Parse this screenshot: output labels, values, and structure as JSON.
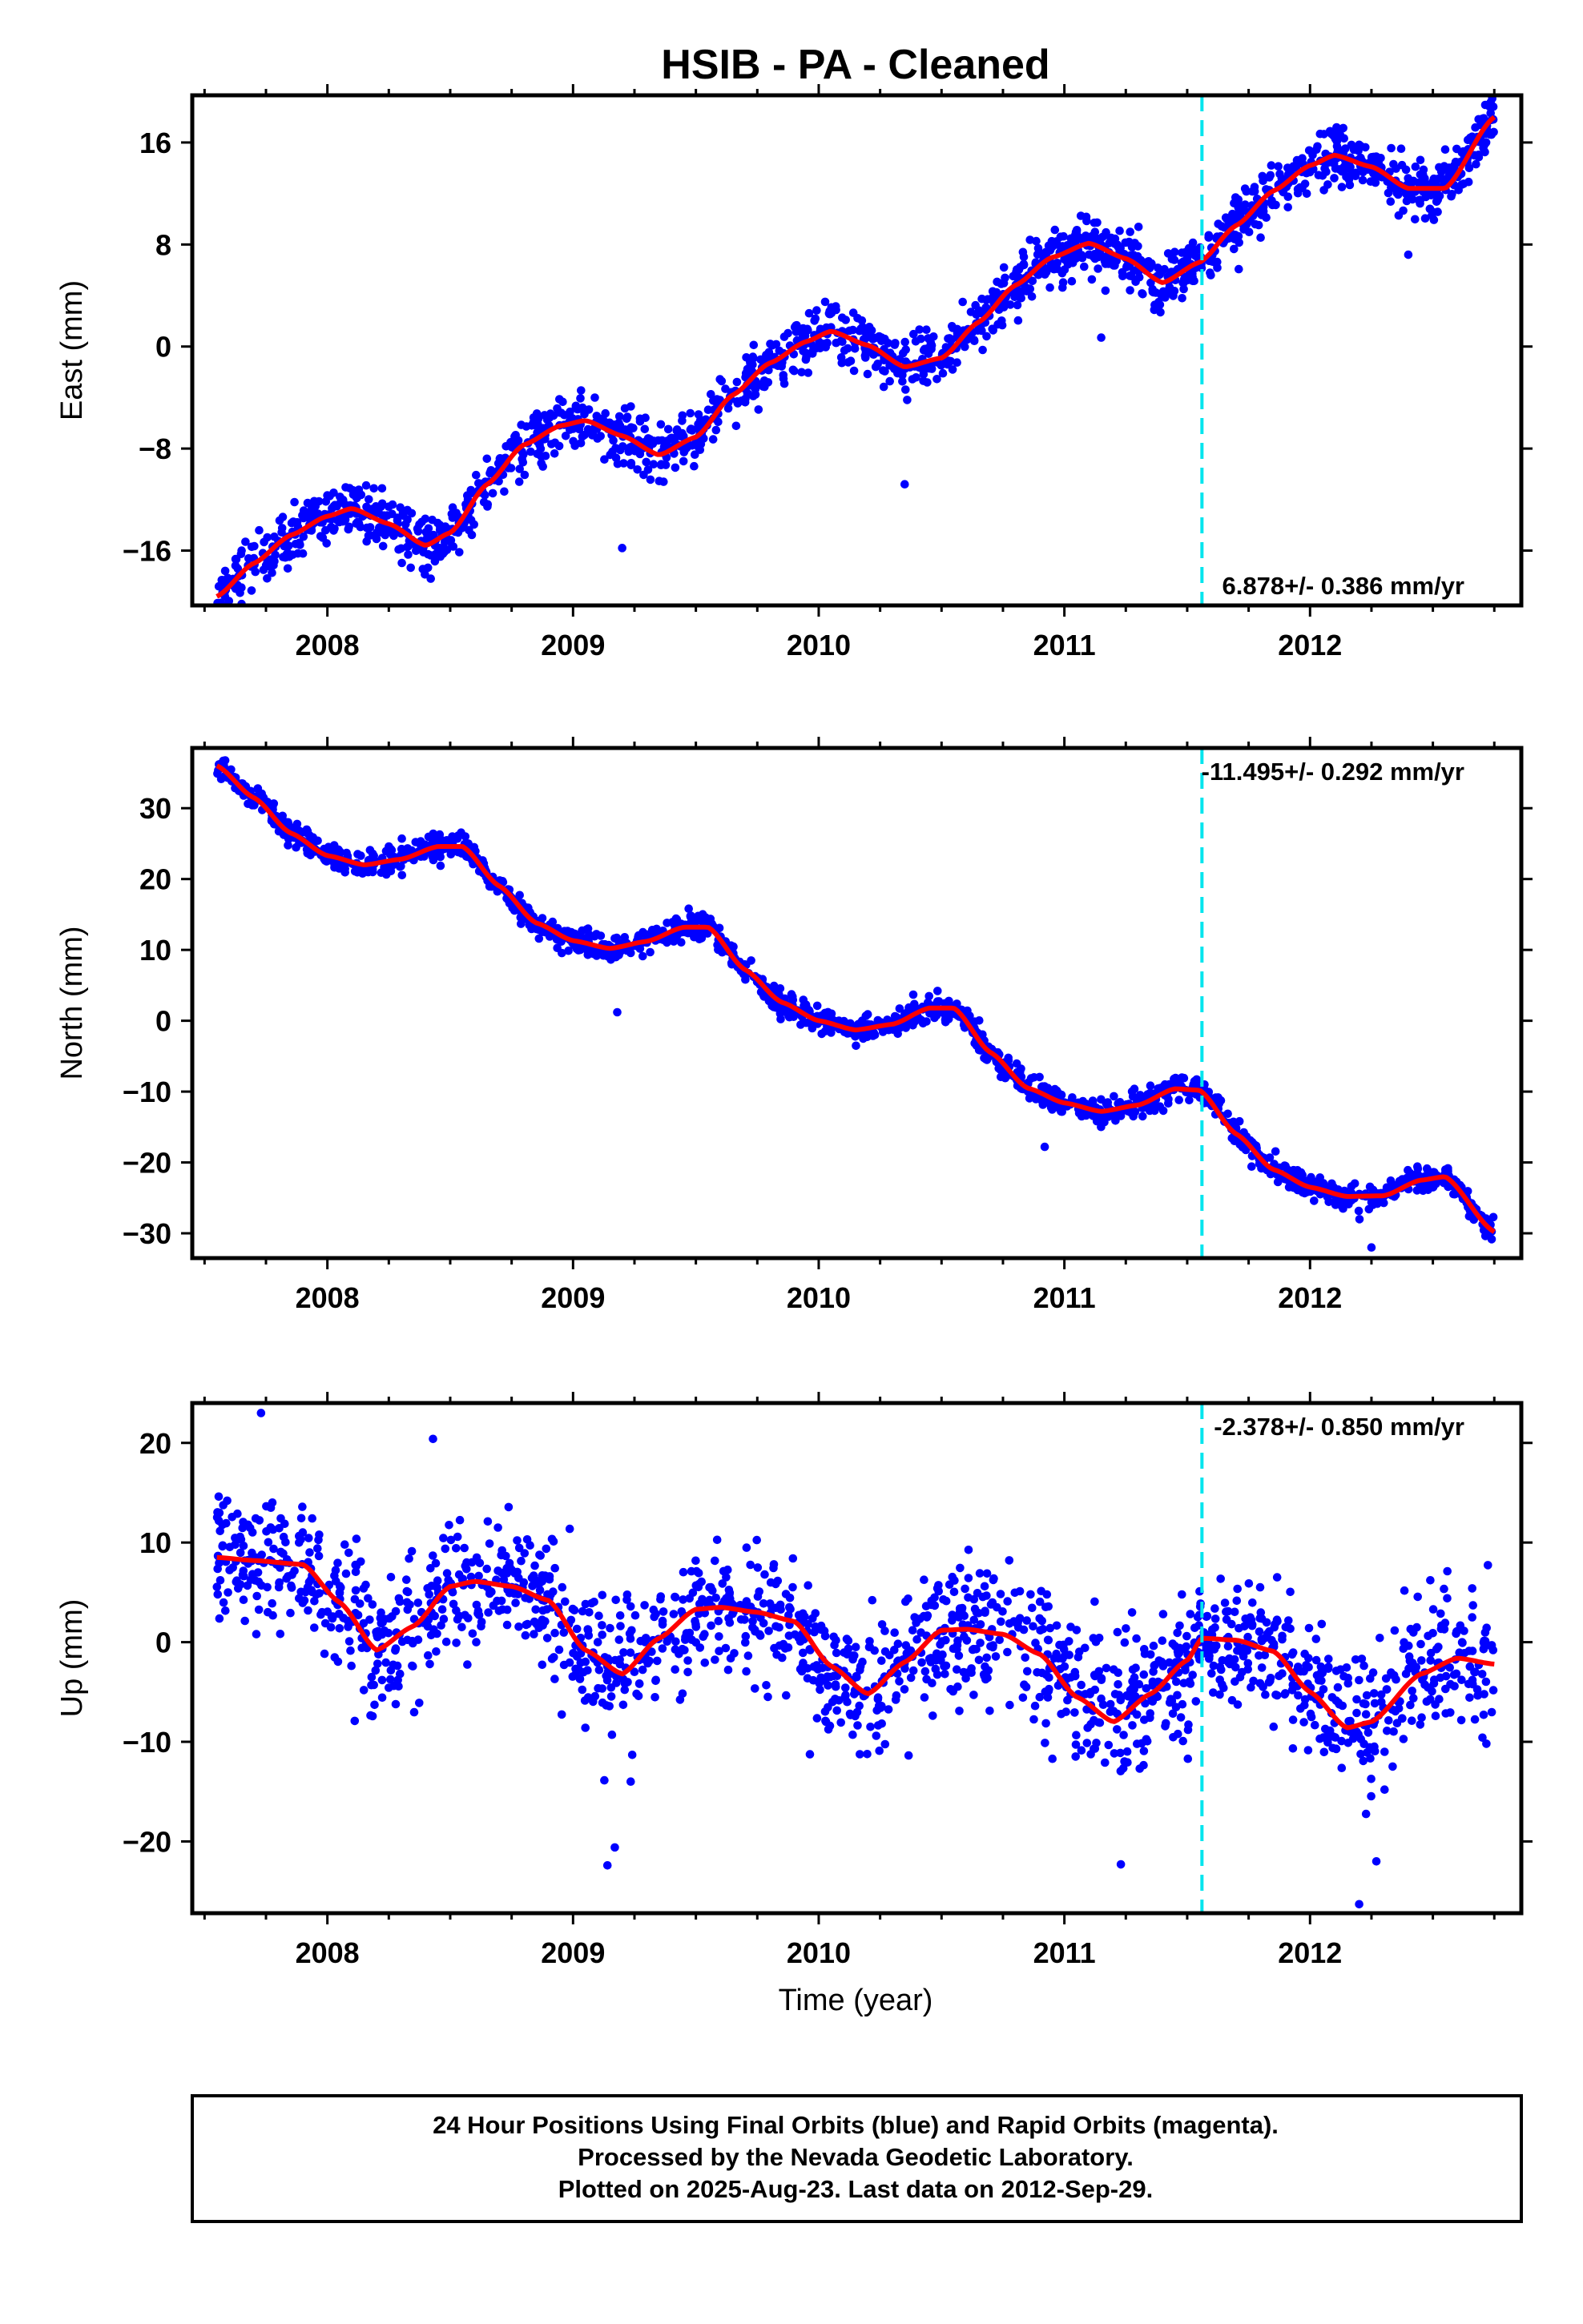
{
  "title": "HSIB  - PA - Cleaned",
  "xlabel": "Time (year)",
  "footer": {
    "line1": "24 Hour Positions Using Final Orbits (blue) and Rapid Orbits (magenta).",
    "line2": "Processed by the Nevada Geodetic Laboratory.",
    "line3": "Plotted on 2025-Aug-23. Last data on 2012-Sep-29."
  },
  "colors": {
    "points": "#0000ff",
    "model": "#ff0000",
    "event": "#00e5ee",
    "frame": "#000000"
  },
  "chart_data": [
    {
      "type": "scatter",
      "ylabel": "East (mm)",
      "rate": "6.878+/- 0.386 mm/yr",
      "rate_position": "bottom-right",
      "xlim": [
        2007.45,
        2012.86
      ],
      "ylim": [
        -20.3,
        19.7
      ],
      "xticks": [
        2008,
        2009,
        2010,
        2011,
        2012
      ],
      "yticks": [
        -16,
        -8,
        0,
        8,
        16
      ],
      "event_line_x": 2011.56,
      "grid": false,
      "model": {
        "x": [
          2007.55,
          2007.7,
          2007.85,
          2008.0,
          2008.1,
          2008.25,
          2008.4,
          2008.5,
          2008.65,
          2008.8,
          2008.95,
          2009.05,
          2009.2,
          2009.35,
          2009.5,
          2009.65,
          2009.8,
          2009.95,
          2010.05,
          2010.2,
          2010.35,
          2010.5,
          2010.65,
          2010.8,
          2010.95,
          2011.1,
          2011.25,
          2011.4,
          2011.55,
          2011.7,
          2011.85,
          2012.0,
          2012.1,
          2012.25,
          2012.4,
          2012.55,
          2012.75
        ],
        "y": [
          -19.6,
          -17.0,
          -14.8,
          -13.3,
          -12.7,
          -13.9,
          -15.6,
          -14.6,
          -10.8,
          -7.7,
          -6.2,
          -5.8,
          -7.0,
          -8.5,
          -7.1,
          -3.8,
          -1.3,
          0.4,
          1.2,
          0.1,
          -1.6,
          -0.9,
          1.9,
          4.8,
          7.0,
          8.1,
          6.9,
          5.0,
          6.6,
          9.5,
          12.2,
          14.2,
          15.0,
          14.1,
          12.4,
          12.4,
          18.0
        ]
      },
      "points": {
        "x_range": [
          2007.55,
          2012.75
        ],
        "scatter_sd_mm": 1.1,
        "count": 1700,
        "outliers": [
          {
            "x": 2009.2,
            "y": -15.8
          },
          {
            "x": 2010.35,
            "y": -10.8
          },
          {
            "x": 2012.4,
            "y": 7.2
          },
          {
            "x": 2011.15,
            "y": 0.7
          }
        ]
      }
    },
    {
      "type": "scatter",
      "ylabel": "North (mm)",
      "rate": "-11.495+/- 0.292 mm/yr",
      "rate_position": "top-right",
      "xlim": [
        2007.45,
        2012.86
      ],
      "ylim": [
        -33.5,
        38.5
      ],
      "xticks": [
        2008,
        2009,
        2010,
        2011,
        2012
      ],
      "yticks": [
        -30,
        -20,
        -10,
        0,
        10,
        20,
        30
      ],
      "event_line_x": 2011.56,
      "grid": false,
      "model": {
        "x": [
          2007.55,
          2007.7,
          2007.85,
          2008.0,
          2008.15,
          2008.3,
          2008.45,
          2008.55,
          2008.7,
          2008.85,
          2009.0,
          2009.15,
          2009.3,
          2009.45,
          2009.55,
          2009.7,
          2009.85,
          2010.0,
          2010.15,
          2010.3,
          2010.45,
          2010.55,
          2010.7,
          2010.85,
          2011.0,
          2011.15,
          2011.3,
          2011.45,
          2011.55,
          2011.7,
          2011.85,
          2012.0,
          2012.15,
          2012.3,
          2012.45,
          2012.55,
          2012.75
        ],
        "y": [
          36.0,
          31.5,
          26.5,
          23.3,
          22.0,
          22.8,
          24.6,
          24.6,
          19.0,
          13.8,
          11.3,
          10.2,
          11.2,
          13.2,
          13.2,
          7.2,
          2.6,
          0.0,
          -1.3,
          -0.5,
          1.8,
          1.8,
          -4.5,
          -9.5,
          -11.6,
          -12.8,
          -11.9,
          -9.6,
          -9.8,
          -16.0,
          -21.0,
          -23.5,
          -24.8,
          -24.7,
          -22.5,
          -22.0,
          -29.8
        ]
      },
      "points": {
        "x_range": [
          2007.55,
          2012.75
        ],
        "scatter_sd_mm": 0.9,
        "count": 1700,
        "outliers": [
          {
            "x": 2009.18,
            "y": 1.2
          },
          {
            "x": 2012.25,
            "y": -32.0
          },
          {
            "x": 2010.92,
            "y": -17.8
          }
        ]
      }
    },
    {
      "type": "scatter",
      "ylabel": "Up (mm)",
      "rate": "-2.378+/- 0.850 mm/yr",
      "rate_position": "top-right",
      "xlim": [
        2007.45,
        2012.86
      ],
      "ylim": [
        -27.2,
        24.0
      ],
      "xticks": [
        2008,
        2009,
        2010,
        2011,
        2012
      ],
      "yticks": [
        -20,
        -10,
        0,
        10,
        20
      ],
      "event_line_x": 2011.56,
      "grid": false,
      "model": {
        "x": [
          2007.55,
          2007.7,
          2007.9,
          2008.05,
          2008.2,
          2008.35,
          2008.5,
          2008.6,
          2008.75,
          2008.9,
          2009.05,
          2009.2,
          2009.35,
          2009.5,
          2009.6,
          2009.75,
          2009.9,
          2010.05,
          2010.2,
          2010.35,
          2010.5,
          2010.6,
          2010.75,
          2010.9,
          2011.05,
          2011.2,
          2011.35,
          2011.5,
          2011.56,
          2011.7,
          2011.85,
          2012.0,
          2012.15,
          2012.25,
          2012.45,
          2012.6,
          2012.75
        ],
        "y": [
          8.5,
          8.2,
          7.8,
          4.0,
          -0.8,
          1.6,
          5.6,
          6.1,
          5.6,
          4.2,
          -0.8,
          -3.2,
          0.4,
          3.3,
          3.5,
          3.0,
          2.1,
          -2.4,
          -5.2,
          -2.0,
          1.2,
          1.3,
          0.8,
          -1.2,
          -5.5,
          -8.0,
          -5.2,
          -1.8,
          0.4,
          0.2,
          -0.9,
          -5.0,
          -8.6,
          -8.0,
          -3.2,
          -1.6,
          -2.2
        ]
      },
      "points": {
        "x_range": [
          2007.55,
          2012.75
        ],
        "scatter_sd_mm": 3.4,
        "count": 1700,
        "outliers": [
          {
            "x": 2007.73,
            "y": 23.0
          },
          {
            "x": 2008.43,
            "y": 20.4
          },
          {
            "x": 2009.17,
            "y": -20.6
          },
          {
            "x": 2009.14,
            "y": -22.4
          },
          {
            "x": 2012.2,
            "y": -26.3
          },
          {
            "x": 2012.27,
            "y": -22.0
          },
          {
            "x": 2011.23,
            "y": -22.3
          },
          {
            "x": 2010.03,
            "y": -8.0
          }
        ]
      }
    }
  ]
}
